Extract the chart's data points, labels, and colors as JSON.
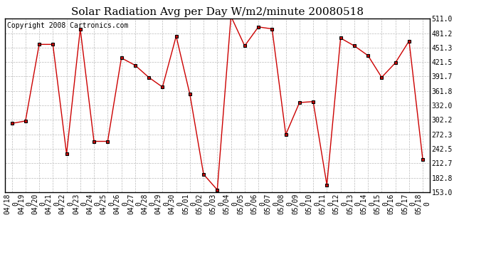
{
  "title": "Solar Radiation Avg per Day W/m2/minute 20080518",
  "copyright": "Copyright 2008 Cartronics.com",
  "dates": [
    "04/18",
    "04/19",
    "04/20",
    "04/21",
    "04/22",
    "04/23",
    "04/24",
    "04/25",
    "04/26",
    "04/27",
    "04/28",
    "04/29",
    "04/30",
    "05/01",
    "05/02",
    "05/03",
    "05/04",
    "05/05",
    "05/06",
    "05/07",
    "05/08",
    "05/09",
    "05/10",
    "05/11",
    "05/12",
    "05/13",
    "05/14",
    "05/15",
    "05/16",
    "05/17",
    "05/18"
  ],
  "values": [
    295,
    300,
    458,
    458,
    232,
    490,
    258,
    258,
    430,
    415,
    390,
    370,
    475,
    355,
    190,
    158,
    516,
    455,
    494,
    490,
    272,
    338,
    340,
    168,
    471,
    455,
    435,
    390,
    420,
    465,
    220
  ],
  "yticks": [
    153.0,
    182.8,
    212.7,
    242.5,
    272.3,
    302.2,
    332.0,
    361.8,
    391.7,
    421.5,
    451.3,
    481.2,
    511.0
  ],
  "line_color": "#cc0000",
  "marker_color": "#000000",
  "marker_face": "#cc0000",
  "background_color": "#ffffff",
  "plot_bg_color": "#ffffff",
  "grid_color": "#bbbbbb",
  "title_fontsize": 11,
  "copyright_fontsize": 7,
  "tick_fontsize": 7,
  "ylim": [
    153.0,
    511.0
  ]
}
